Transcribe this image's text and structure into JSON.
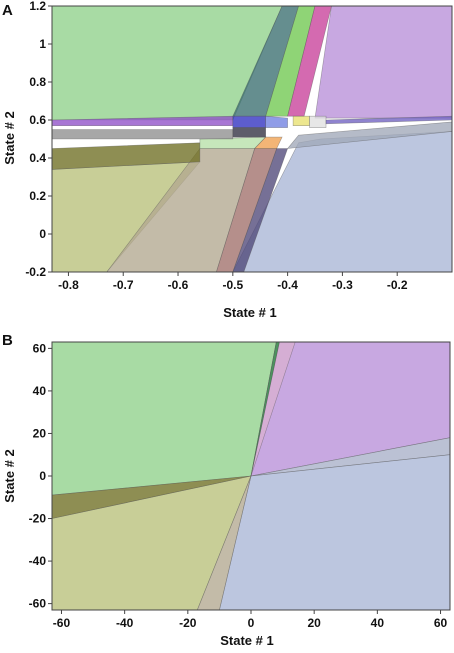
{
  "panels": [
    {
      "letter": "A",
      "xlabel": "State # 1",
      "ylabel": "State # 2",
      "xlim": [
        -0.83,
        -0.1
      ],
      "ylim": [
        -0.2,
        1.2
      ],
      "xticks": [
        {
          "v": -0.8,
          "label": "-0.8"
        },
        {
          "v": -0.7,
          "label": "-0.7"
        },
        {
          "v": -0.6,
          "label": "-0.6"
        },
        {
          "v": -0.5,
          "label": "-0.5"
        },
        {
          "v": -0.4,
          "label": "-0.4"
        },
        {
          "v": -0.3,
          "label": "-0.3"
        },
        {
          "v": -0.2,
          "label": "-0.2"
        }
      ],
      "yticks": [
        {
          "v": -0.2,
          "label": "-0.2"
        },
        {
          "v": 0,
          "label": "0"
        },
        {
          "v": 0.2,
          "label": "0.2"
        },
        {
          "v": 0.4,
          "label": "0.4"
        },
        {
          "v": 0.6,
          "label": "0.6"
        },
        {
          "v": 0.8,
          "label": "0.8"
        },
        {
          "v": 1,
          "label": "1"
        },
        {
          "v": 1.2,
          "label": "1.2"
        }
      ],
      "regions": [
        {
          "name": "region-green-upper-left",
          "color": "#8fd18a",
          "pts": [
            [
              -0.83,
              1.2
            ],
            [
              -0.41,
              1.2
            ],
            [
              -0.5,
              0.6
            ],
            [
              -0.83,
              0.6
            ]
          ]
        },
        {
          "name": "region-purple-upper-right",
          "color": "#b98fd8",
          "pts": [
            [
              -0.32,
              1.2
            ],
            [
              -0.1,
              1.2
            ],
            [
              -0.1,
              0.61
            ],
            [
              -0.35,
              0.61
            ]
          ]
        },
        {
          "name": "region-blue-lower-right",
          "color": "#a9b6d6",
          "pts": [
            [
              -0.5,
              -0.2
            ],
            [
              -0.1,
              -0.2
            ],
            [
              -0.1,
              0.54
            ],
            [
              -0.34,
              0.5
            ],
            [
              -0.38,
              0.48
            ]
          ]
        },
        {
          "name": "region-olive-lower-left",
          "color": "#b8c07a",
          "pts": [
            [
              -0.83,
              -0.2
            ],
            [
              -0.73,
              -0.2
            ],
            [
              -0.56,
              0.38
            ],
            [
              -0.83,
              0.34
            ]
          ]
        },
        {
          "name": "region-tan-lower-middle",
          "color": "#b2a890",
          "pts": [
            [
              -0.73,
              -0.2
            ],
            [
              -0.53,
              -0.2
            ],
            [
              -0.46,
              0.45
            ],
            [
              -0.56,
              0.45
            ]
          ]
        },
        {
          "name": "region-rose-lower-stripe",
          "color": "#a0706a",
          "pts": [
            [
              -0.53,
              -0.2
            ],
            [
              -0.5,
              -0.2
            ],
            [
              -0.42,
              0.45
            ],
            [
              -0.46,
              0.45
            ]
          ]
        },
        {
          "name": "region-dark-olive-band",
          "color": "#6e6e22",
          "pts": [
            [
              -0.83,
              0.34
            ],
            [
              -0.56,
              0.38
            ],
            [
              -0.56,
              0.48
            ],
            [
              -0.83,
              0.45
            ]
          ]
        },
        {
          "name": "region-light-green-band",
          "color": "#b6e0a8",
          "pts": [
            [
              -0.56,
              0.45
            ],
            [
              -0.46,
              0.45
            ],
            [
              -0.44,
              0.51
            ],
            [
              -0.56,
              0.5
            ]
          ]
        },
        {
          "name": "region-orange-patch",
          "color": "#f0a050",
          "pts": [
            [
              -0.46,
              0.45
            ],
            [
              -0.42,
              0.45
            ],
            [
              -0.41,
              0.51
            ],
            [
              -0.44,
              0.51
            ]
          ]
        },
        {
          "name": "region-gray-right-band",
          "color": "#a0a8b8",
          "pts": [
            [
              -0.4,
              0.45
            ],
            [
              -0.1,
              0.54
            ],
            [
              -0.1,
              0.59
            ],
            [
              -0.38,
              0.52
            ]
          ]
        },
        {
          "name": "region-teal-diagonal",
          "color": "#3a6e70",
          "pts": [
            [
              -0.41,
              1.2
            ],
            [
              -0.38,
              1.2
            ],
            [
              -0.44,
              0.62
            ],
            [
              -0.5,
              0.62
            ]
          ]
        },
        {
          "name": "region-lime-diagonal",
          "color": "#70c850",
          "pts": [
            [
              -0.38,
              1.2
            ],
            [
              -0.35,
              1.2
            ],
            [
              -0.4,
              0.62
            ],
            [
              -0.44,
              0.62
            ]
          ]
        },
        {
          "name": "region-magenta-diagonal",
          "color": "#c8409a",
          "pts": [
            [
              -0.35,
              1.2
            ],
            [
              -0.32,
              1.2
            ],
            [
              -0.37,
              0.62
            ],
            [
              -0.4,
              0.62
            ]
          ]
        },
        {
          "name": "region-purple-band-left",
          "color": "#9050c8",
          "pts": [
            [
              -0.83,
              0.6
            ],
            [
              -0.5,
              0.62
            ],
            [
              -0.5,
              0.57
            ],
            [
              -0.83,
              0.57
            ]
          ]
        },
        {
          "name": "region-blue-center",
          "color": "#3030c0",
          "pts": [
            [
              -0.5,
              0.62
            ],
            [
              -0.44,
              0.62
            ],
            [
              -0.44,
              0.56
            ],
            [
              -0.5,
              0.56
            ]
          ]
        },
        {
          "name": "region-light-blue-center",
          "color": "#7080e0",
          "pts": [
            [
              -0.44,
              0.62
            ],
            [
              -0.4,
              0.61
            ],
            [
              -0.4,
              0.56
            ],
            [
              -0.44,
              0.56
            ]
          ]
        },
        {
          "name": "region-yellow-center",
          "color": "#e8e070",
          "pts": [
            [
              -0.39,
              0.62
            ],
            [
              -0.36,
              0.62
            ],
            [
              -0.36,
              0.57
            ],
            [
              -0.39,
              0.57
            ]
          ]
        },
        {
          "name": "region-pale-center",
          "color": "#e0e0e0",
          "pts": [
            [
              -0.36,
              0.62
            ],
            [
              -0.33,
              0.62
            ],
            [
              -0.33,
              0.56
            ],
            [
              -0.36,
              0.56
            ]
          ]
        },
        {
          "name": "region-gray-band-left",
          "color": "#8e8e8e",
          "pts": [
            [
              -0.83,
              0.55
            ],
            [
              -0.5,
              0.55
            ],
            [
              -0.5,
              0.5
            ],
            [
              -0.83,
              0.5
            ]
          ]
        },
        {
          "name": "region-black-center",
          "color": "#303040",
          "pts": [
            [
              -0.5,
              0.56
            ],
            [
              -0.44,
              0.56
            ],
            [
              -0.44,
              0.51
            ],
            [
              -0.5,
              0.51
            ]
          ]
        },
        {
          "name": "region-purple-band-right",
          "color": "#7060c0",
          "pts": [
            [
              -0.33,
              0.6
            ],
            [
              -0.1,
              0.62
            ],
            [
              -0.1,
              0.6
            ],
            [
              -0.33,
              0.58
            ]
          ]
        },
        {
          "name": "region-dark-purple-lower-stripe",
          "color": "#504878",
          "pts": [
            [
              -0.5,
              -0.2
            ],
            [
              -0.48,
              -0.2
            ],
            [
              -0.4,
              0.45
            ],
            [
              -0.42,
              0.45
            ]
          ]
        }
      ]
    },
    {
      "letter": "B",
      "xlabel": "State # 1",
      "ylabel": "State # 2",
      "xlim": [
        -63,
        63
      ],
      "ylim": [
        -63,
        63
      ],
      "xticks": [
        {
          "v": -60,
          "label": "-60"
        },
        {
          "v": -40,
          "label": "-40"
        },
        {
          "v": -20,
          "label": "-20"
        },
        {
          "v": 0,
          "label": "0"
        },
        {
          "v": 20,
          "label": "20"
        },
        {
          "v": 40,
          "label": "40"
        },
        {
          "v": 60,
          "label": "60"
        }
      ],
      "yticks": [
        {
          "v": -60,
          "label": "-60"
        },
        {
          "v": -40,
          "label": "-40"
        },
        {
          "v": -20,
          "label": "-20"
        },
        {
          "v": 0,
          "label": "0"
        },
        {
          "v": 20,
          "label": "20"
        },
        {
          "v": 40,
          "label": "40"
        },
        {
          "v": 60,
          "label": "60"
        }
      ],
      "regions": [
        {
          "name": "region-green-upper-left",
          "color": "#8fd18a",
          "pts": [
            [
              -63,
              63
            ],
            [
              8,
              63
            ],
            [
              0,
              0
            ],
            [
              -63,
              -9
            ]
          ]
        },
        {
          "name": "region-purple-upper-right",
          "color": "#b98fd8",
          "pts": [
            [
              8,
              63
            ],
            [
              63,
              63
            ],
            [
              63,
              18
            ],
            [
              0,
              0
            ]
          ]
        },
        {
          "name": "region-pink-upper-wedge",
          "color": "#d8b0d0",
          "pts": [
            [
              9,
              63
            ],
            [
              14,
              63
            ],
            [
              0,
              0
            ]
          ]
        },
        {
          "name": "region-gray-right-wedge",
          "color": "#a8b0c8",
          "pts": [
            [
              63,
              18
            ],
            [
              63,
              10
            ],
            [
              0,
              0
            ]
          ]
        },
        {
          "name": "region-blue-lower-right",
          "color": "#a9b6d6",
          "pts": [
            [
              0,
              0
            ],
            [
              63,
              10
            ],
            [
              63,
              -63
            ],
            [
              -10,
              -63
            ]
          ]
        },
        {
          "name": "region-olive-lower-left",
          "color": "#b8c07a",
          "pts": [
            [
              -63,
              -20
            ],
            [
              0,
              0
            ],
            [
              -17,
              -63
            ],
            [
              -63,
              -63
            ]
          ]
        },
        {
          "name": "region-dark-olive-band",
          "color": "#6e6e22",
          "pts": [
            [
              -63,
              -9
            ],
            [
              0,
              0
            ],
            [
              -63,
              -20
            ]
          ]
        },
        {
          "name": "region-tan-lower-middle",
          "color": "#b2a890",
          "pts": [
            [
              0,
              0
            ],
            [
              -10,
              -63
            ],
            [
              -17,
              -63
            ]
          ]
        },
        {
          "name": "region-dark-green-line",
          "color": "#2a8a3a",
          "pts": [
            [
              8,
              63
            ],
            [
              9,
              63
            ],
            [
              0,
              0
            ]
          ]
        }
      ]
    }
  ]
}
